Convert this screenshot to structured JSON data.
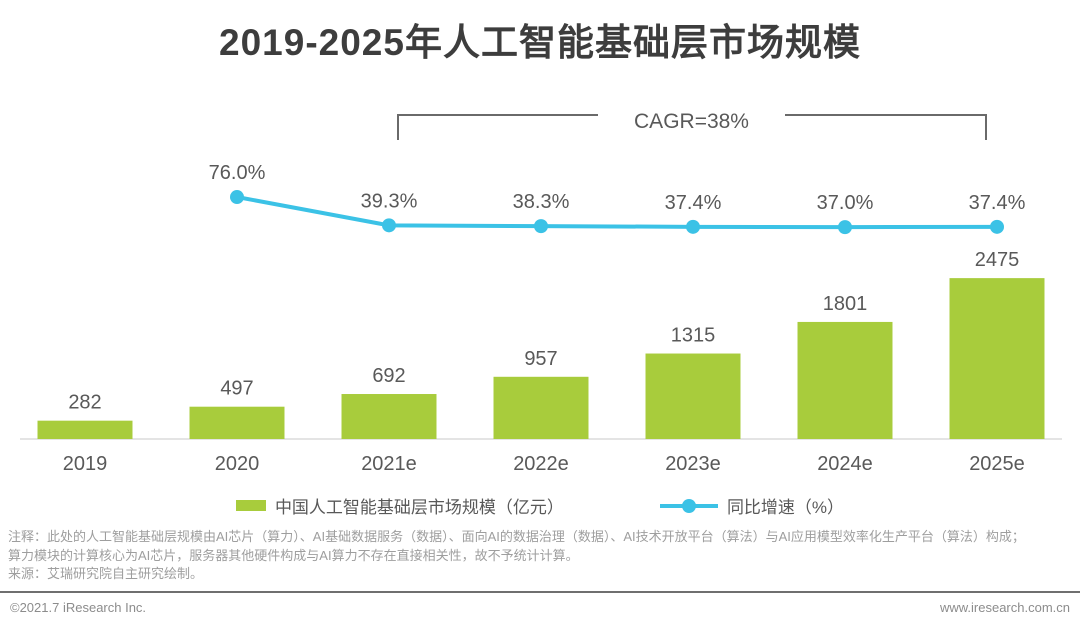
{
  "title": "2019-2025年人工智能基础层市场规模",
  "annotation": {
    "cagr_label": "CAGR=38%"
  },
  "chart_data": {
    "type": "bar",
    "combo": "bar+line",
    "title": "2019-2025年人工智能基础层市场规模",
    "categories": [
      "2019",
      "2020",
      "2021e",
      "2022e",
      "2023e",
      "2024e",
      "2025e"
    ],
    "series": [
      {
        "name": "中国人工智能基础层市场规模（亿元）",
        "type": "bar",
        "color": "#A8CC3C",
        "values": [
          282,
          497,
          692,
          957,
          1315,
          1801,
          2475
        ]
      },
      {
        "name": "同比增速（%）",
        "type": "line",
        "color": "#3BC2E6",
        "categories": [
          "2020",
          "2021e",
          "2022e",
          "2023e",
          "2024e",
          "2025e"
        ],
        "values": [
          76.0,
          39.3,
          38.3,
          37.4,
          37.0,
          37.4
        ],
        "point_labels": [
          "76.0%",
          "39.3%",
          "38.3%",
          "37.4%",
          "37.0%",
          "37.4%"
        ]
      }
    ],
    "annotations": [
      "CAGR=38%"
    ],
    "xlabel": "",
    "ylabel": "",
    "grid": false,
    "legend_position": "bottom"
  },
  "notes": {
    "line1": "注释：此处的人工智能基础层规模由AI芯片（算力）、AI基础数据服务（数据）、面向AI的数据治理（数据）、AI技术开放平台（算法）与AI应用模型效率化生产平台（算法）构成；",
    "line2": "算力模块的计算核心为AI芯片，服务器其他硬件构成与AI算力不存在直接相关性，故不予统计计算。",
    "source": "来源：艾瑞研究院自主研究绘制。"
  },
  "footer": {
    "left": "©2021.7 iResearch Inc.",
    "right": "www.iresearch.com.cn"
  },
  "colors": {
    "bar": "#A8CC3C",
    "line": "#3BC2E6",
    "title_text": "#3D3D3D",
    "label_text": "#595959",
    "note_text": "#9E9E9E",
    "footer_text": "#8C8C8C",
    "axis": "#C9C9C9",
    "bracket": "#6A6A6A"
  }
}
